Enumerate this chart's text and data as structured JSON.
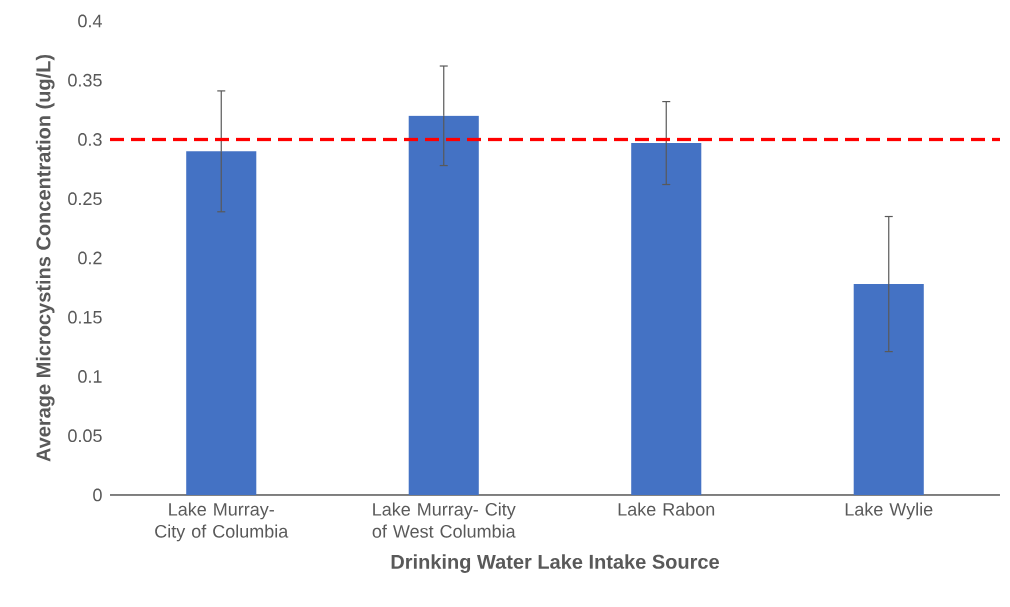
{
  "chart_data": {
    "type": "bar",
    "categories": [
      "Lake Murray- City of Columbia",
      "Lake Murray- City of West Columbia",
      "Lake Rabon",
      "Lake Wylie"
    ],
    "values": [
      0.29,
      0.32,
      0.297,
      0.178
    ],
    "errors": [
      0.051,
      0.042,
      0.035,
      0.057
    ],
    "color": "#4472c4",
    "xlabel": "Drinking Water Lake Intake Source",
    "ylabel": "Average Microcystins Concentration (ug/L)",
    "ylim": [
      0,
      0.4
    ],
    "yticks": [
      0,
      0.05,
      0.1,
      0.15,
      0.2,
      0.25,
      0.3,
      0.35,
      0.4
    ],
    "ref_lines": [
      {
        "axis": "y",
        "value": 0.3,
        "color": "#ff0000",
        "line_style": "dashed"
      }
    ]
  }
}
